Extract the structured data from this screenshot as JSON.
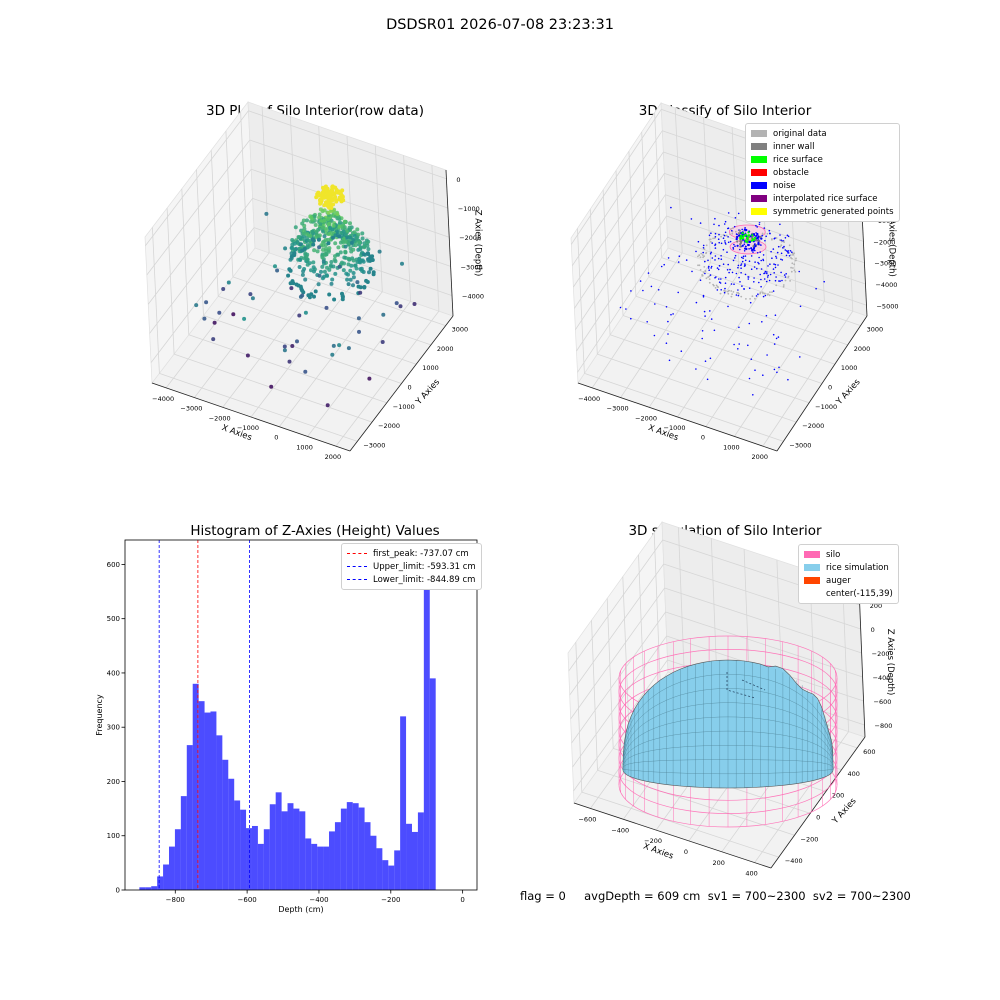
{
  "page": {
    "suptitle": "DSDSR01 2026-07-08 23:23:31"
  },
  "plot1": {
    "title": "3D Plot of Silo Interior(row data)",
    "xlabel": "X Axies",
    "ylabel": "Y Axies",
    "zlabel": "Z Axies (Depth)",
    "xticks": [
      "−4000",
      "−3000",
      "−2000",
      "−1000",
      "0",
      "1000",
      "2000"
    ],
    "yticks": [
      "−3000",
      "−2000",
      "−1000",
      "0",
      "1000",
      "2000",
      "3000"
    ],
    "zticks": [
      "0",
      "−1000",
      "−2000",
      "−3000",
      "−4000"
    ]
  },
  "plot2": {
    "title": "3D classify of Silo Interior",
    "xlabel": "X Axies",
    "ylabel": "Y Axies",
    "zlabel": "Z Axies (Depth)",
    "xticks": [
      "−4000",
      "−3000",
      "−2000",
      "−1000",
      "0",
      "1000",
      "2000"
    ],
    "yticks": [
      "−3000",
      "−2000",
      "−1000",
      "0",
      "1000",
      "2000",
      "3000"
    ],
    "zticks": [
      "1000",
      "0",
      "−1000",
      "−2000",
      "−3000",
      "−4000",
      "−5000"
    ],
    "legend": [
      {
        "label": "original data",
        "color": "#b3b3b3"
      },
      {
        "label": "inner wall",
        "color": "#808080"
      },
      {
        "label": "rice surface",
        "color": "#00ff00"
      },
      {
        "label": "obstacle",
        "color": "#ff0000"
      },
      {
        "label": "noise",
        "color": "#0000ff"
      },
      {
        "label": "interpolated rice surface",
        "color": "#800080"
      },
      {
        "label": "symmetric generated points",
        "color": "#ffff00"
      }
    ]
  },
  "plot3": {
    "title": "Histogram of Z-Axies (Height) Values",
    "legend": [
      {
        "label": "first_peak: -737.07 cm",
        "color": "#ff0000"
      },
      {
        "label": "Upper_limit: -593.31 cm",
        "color": "#0000ff"
      },
      {
        "label": "Lower_limit: -844.89 cm",
        "color": "#0000ff"
      }
    ]
  },
  "plot4": {
    "title": "3D simulation of Silo Interior",
    "xlabel": "X Axies",
    "ylabel": "Y Axies",
    "zlabel": "Z Axies (Depth)",
    "xticks": [
      "−600",
      "−400",
      "−200",
      "0",
      "200",
      "400"
    ],
    "yticks": [
      "−400",
      "−200",
      "0",
      "200",
      "400",
      "600"
    ],
    "zticks": [
      "200",
      "0",
      "−200",
      "−400",
      "−600",
      "−800"
    ],
    "legend": [
      {
        "label": "silo",
        "color": "#ff69b4"
      },
      {
        "label": "rice simulation",
        "color": "#87ceeb"
      },
      {
        "label": "auger",
        "color": "#ff4500"
      },
      {
        "label": "center(-115,39)",
        "color": ""
      }
    ]
  },
  "footer": {
    "text": "flag = 0     avgDepth = 609 cm  sv1 = 700~2300  sv2 = 700~2300"
  },
  "chart_data": [
    {
      "type": "scatter",
      "title": "3D Plot of Silo Interior(row data)",
      "xlabel": "X Axies",
      "ylabel": "Y Axies",
      "zlabel": "Z Axies (Depth)",
      "xlim": [
        -4500,
        2500
      ],
      "ylim": [
        -3500,
        3500
      ],
      "zlim": [
        -4700,
        300
      ]
    },
    {
      "type": "scatter",
      "title": "3D classify of Silo Interior",
      "xlabel": "X Axies",
      "ylabel": "Y Axies",
      "zlabel": "Z Axies (Depth)",
      "xlim": [
        -4500,
        2500
      ],
      "ylim": [
        -3500,
        3500
      ],
      "zlim": [
        -5500,
        1300
      ]
    },
    {
      "type": "bar",
      "title": "Histogram of Z-Axies (Height) Values",
      "xlabel": "Depth (cm)",
      "ylabel": "Frequency",
      "xlim": [
        -940,
        40
      ],
      "ylim": [
        0,
        645
      ],
      "xticks": [
        -800,
        -600,
        -400,
        -200,
        0
      ],
      "yticks": [
        0,
        100,
        200,
        300,
        400,
        500,
        600
      ],
      "bin_start": -900,
      "bin_width": 16.5,
      "values": [
        5,
        5,
        7,
        25,
        47,
        80,
        112,
        173,
        267,
        380,
        348,
        327,
        329,
        285,
        240,
        205,
        165,
        148,
        114,
        118,
        85,
        112,
        158,
        180,
        145,
        160,
        150,
        145,
        95,
        85,
        80,
        80,
        108,
        125,
        150,
        162,
        160,
        152,
        125,
        100,
        77,
        55,
        45,
        73,
        320,
        122,
        107,
        143,
        610,
        390
      ],
      "vlines": [
        {
          "x": -737.07,
          "color": "#ff0000",
          "label": "first_peak: -737.07 cm"
        },
        {
          "x": -593.31,
          "color": "#0000ff",
          "label": "Upper_limit: -593.31 cm"
        },
        {
          "x": -844.89,
          "color": "#0000ff",
          "label": "Lower_limit: -844.89 cm"
        }
      ]
    },
    {
      "type": "surface",
      "title": "3D simulation of Silo Interior",
      "xlabel": "X Axies",
      "ylabel": "Y Axies",
      "zlabel": "Z Axies (Depth)",
      "xlim": [
        -700,
        500
      ],
      "ylim": [
        -500,
        700
      ],
      "zlim": [
        -900,
        350
      ],
      "series": [
        {
          "name": "silo",
          "color": "#ff69b4"
        },
        {
          "name": "rice simulation",
          "color": "#87ceeb"
        }
      ]
    }
  ]
}
